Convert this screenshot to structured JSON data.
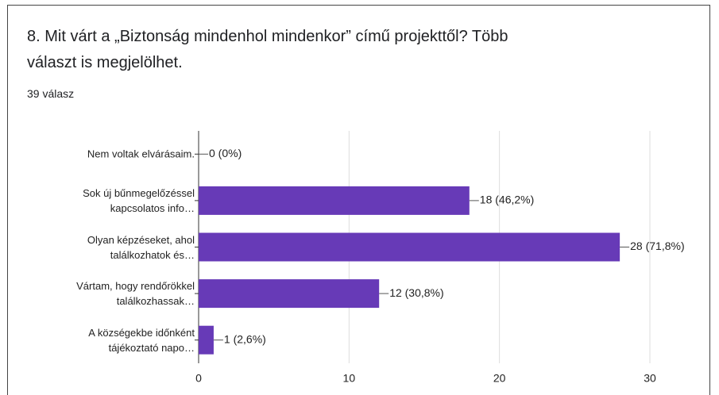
{
  "chart_data": {
    "type": "bar",
    "orientation": "horizontal",
    "title": "8. Mit várt a „Biztonság mindenhol mindenkor” című projekttől? Több\nválaszt is megjelölhet.",
    "subtitle": "39 válasz",
    "categories": [
      "Nem voltak elvárásaim.",
      "Sok új bűnmegelőzéssel\nkapcsolatos info…",
      "Olyan képzéseket, ahol\ntalálkozhatok és…",
      "Vártam, hogy rendőrökkel\ntalálkozhassak…",
      "A községekbe időnként\ntájékoztató napo…"
    ],
    "values": [
      0,
      18,
      28,
      12,
      1
    ],
    "value_labels": [
      "0 (0%)",
      "18 (46,2%)",
      "28 (71,8%)",
      "12 (30,8%)",
      "1 (2,6%)"
    ],
    "color": "#673ab7",
    "xlim": [
      0,
      30
    ],
    "xticks": [
      0,
      10,
      20,
      30
    ],
    "grid": true
  }
}
